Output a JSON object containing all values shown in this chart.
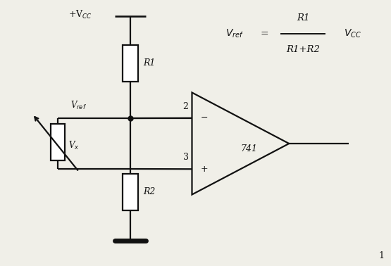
{
  "bg_color": "#f0efe8",
  "line_color": "#111111",
  "vcc_label": "+V$_{CC}$",
  "vref_label": "V$_{ref}$",
  "vx_label": "V$_x$",
  "r1_label": "R1",
  "r2_label": "R2",
  "node2_label": "2",
  "node3_label": "3",
  "opamp_label": "741",
  "fig_num": "1"
}
